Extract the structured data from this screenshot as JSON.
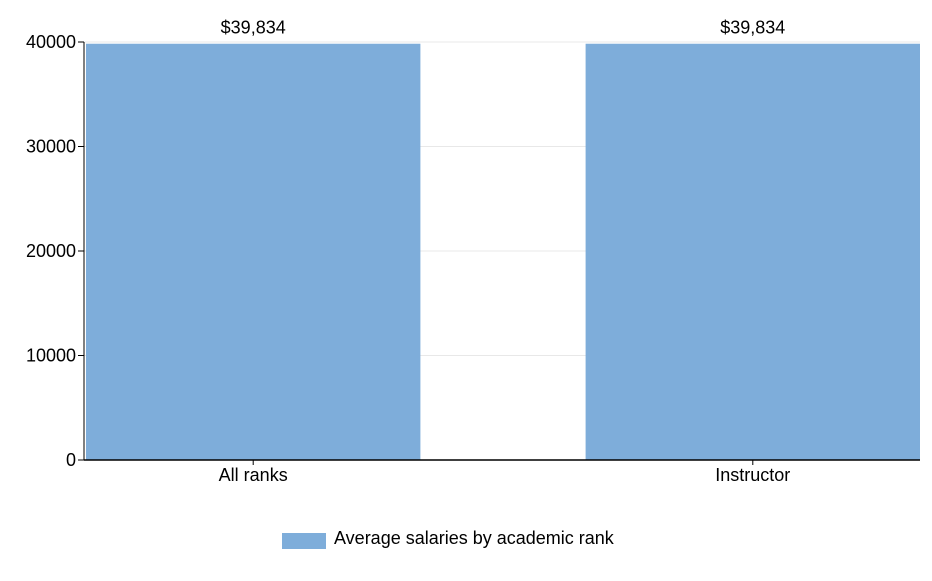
{
  "chart_data": {
    "type": "bar",
    "categories": [
      "All ranks",
      "Instructor"
    ],
    "series": [
      {
        "name": "Average salaries by academic rank",
        "values": [
          39834,
          39834
        ],
        "data_labels": [
          "$39,834",
          "$39,834"
        ]
      }
    ],
    "ylim": [
      0,
      40000
    ],
    "yticks": [
      "0",
      "10000",
      "20000",
      "30000",
      "40000"
    ],
    "grid": true,
    "legend_position": "bottom-center",
    "colors": {
      "bar": "#7eadda",
      "axis": "#000000",
      "grid": "#e8e8e8"
    }
  }
}
